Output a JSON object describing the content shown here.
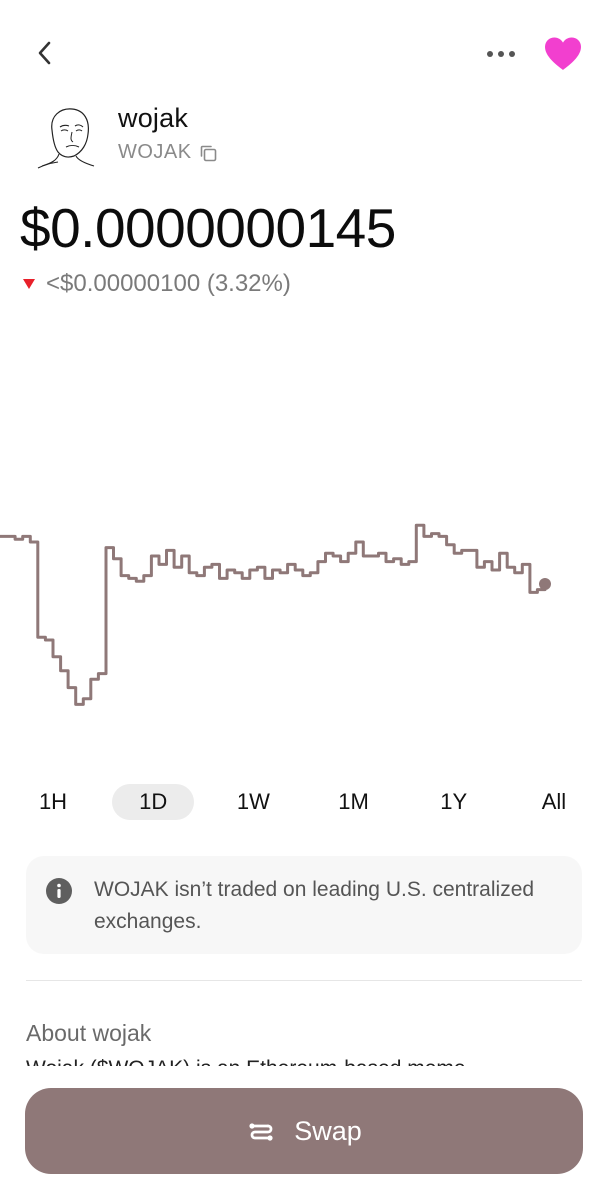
{
  "header": {
    "back_icon": "chevron-left-icon",
    "more_icon": "more-horizontal-icon",
    "favorite_icon": "heart-icon",
    "favorite_color": "#f23fcf"
  },
  "token": {
    "name": "wojak",
    "symbol": "WOJAK",
    "avatar_icon": "wojak-avatar"
  },
  "price": {
    "current": "$0.0000000145",
    "change": "<$0.00000100 (3.32%)",
    "direction": "down",
    "down_color": "#e8202a"
  },
  "chart_data": {
    "type": "line",
    "line_color": "#8f7878",
    "y": [
      0.62,
      0.62,
      0.61,
      0.62,
      0.6,
      0.26,
      0.25,
      0.19,
      0.14,
      0.08,
      0.02,
      0.04,
      0.11,
      0.13,
      0.58,
      0.54,
      0.48,
      0.47,
      0.46,
      0.48,
      0.55,
      0.52,
      0.57,
      0.51,
      0.55,
      0.49,
      0.48,
      0.51,
      0.52,
      0.47,
      0.5,
      0.49,
      0.47,
      0.5,
      0.51,
      0.47,
      0.5,
      0.49,
      0.52,
      0.5,
      0.48,
      0.49,
      0.53,
      0.56,
      0.55,
      0.53,
      0.56,
      0.6,
      0.55,
      0.55,
      0.56,
      0.53,
      0.54,
      0.52,
      0.53,
      0.66,
      0.62,
      0.63,
      0.62,
      0.59,
      0.56,
      0.57,
      0.57,
      0.51,
      0.53,
      0.5,
      0.56,
      0.51,
      0.49,
      0.52,
      0.42,
      0.43,
      0.45
    ],
    "last_point_marker": true,
    "ranges": [
      "1H",
      "1D",
      "1W",
      "1M",
      "1Y",
      "All"
    ],
    "selected_range": "1D"
  },
  "notice": {
    "icon": "info-icon",
    "text": "WOJAK isn’t traded on leading U.S. centralized exchanges."
  },
  "about": {
    "title": "About wojak",
    "body": "Wojak ($WOJAK) is an Ethereum-based meme"
  },
  "swap": {
    "label": "Swap",
    "icon": "swap-arrows-icon",
    "background": "#8f7878"
  }
}
